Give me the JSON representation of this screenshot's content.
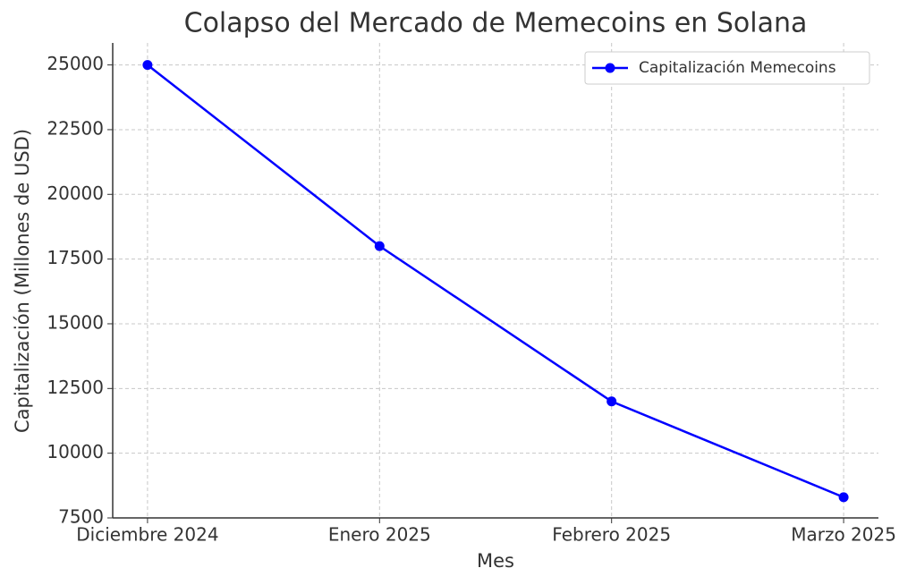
{
  "chart_data": {
    "type": "line",
    "title": "Colapso del Mercado de Memecoins en Solana",
    "x_label": "Mes",
    "y_label": "Capitalización (Millones de USD)",
    "categories": [
      "Diciembre 2024",
      "Enero 2025",
      "Febrero 2025",
      "Marzo 2025"
    ],
    "series": [
      {
        "name": "Capitalización Memecoins",
        "color": "#0000ff",
        "values": [
          25000,
          18000,
          12000,
          8300
        ]
      }
    ],
    "ylim": [
      7500,
      25850
    ],
    "yticks": [
      7500,
      10000,
      12500,
      15000,
      17500,
      20000,
      22500,
      25000
    ],
    "grid": true,
    "legend": "upper right"
  }
}
